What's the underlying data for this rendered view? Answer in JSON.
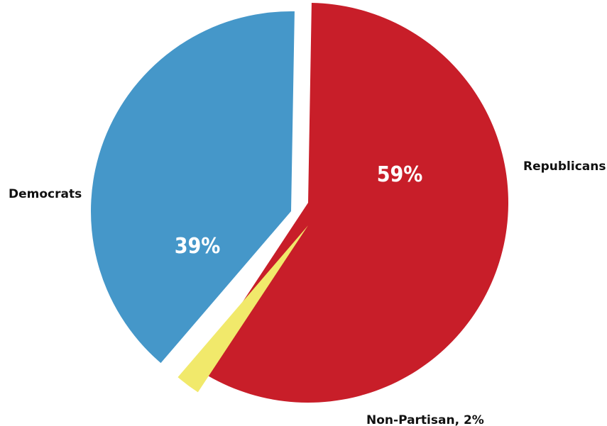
{
  "chart_data": {
    "type": "pie",
    "title": "",
    "slices": [
      {
        "name": "Republicans",
        "value": 59,
        "value_label": "59%",
        "label": "Republicans",
        "color": "#c81e29"
      },
      {
        "name": "Non-Partisan",
        "value": 2,
        "value_label": "",
        "label": "Non-Partisan, 2%",
        "color": "#f1e96b"
      },
      {
        "name": "Democrats",
        "value": 39,
        "value_label": "39%",
        "label": "Democrats",
        "color": "#4597c9"
      }
    ]
  }
}
